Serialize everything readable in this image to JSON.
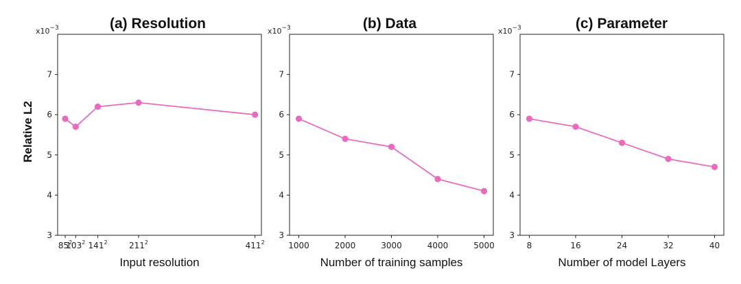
{
  "figure": {
    "ylabel": "Relative L2",
    "y_multiplier": "x10",
    "y_multiplier_exp": "−3"
  },
  "chart_data": [
    {
      "type": "line",
      "title": "(a) Resolution",
      "xlabel": "Input resolution",
      "ylabel": "Relative L2",
      "x": [
        85,
        103,
        141,
        211,
        411
      ],
      "x_tick_labels": [
        {
          "base": "85",
          "sup": "2"
        },
        {
          "base": "103",
          "sup": "2"
        },
        {
          "base": "141",
          "sup": "2"
        },
        {
          "base": "211",
          "sup": "2"
        },
        {
          "base": "411",
          "sup": "2"
        }
      ],
      "values": [
        5.9,
        5.7,
        6.2,
        6.3,
        6.0
      ],
      "xlim": [
        72,
        422
      ],
      "ylim": [
        3,
        8
      ],
      "y_ticks": [
        3,
        4,
        5,
        6,
        7
      ],
      "y_scale_label": "x10^-3",
      "color": "#e86bbd"
    },
    {
      "type": "line",
      "title": "(b) Data",
      "xlabel": "Number of training samples",
      "ylabel": "",
      "x": [
        1000,
        2000,
        3000,
        4000,
        5000
      ],
      "x_tick_labels": [
        {
          "base": "1000",
          "sup": ""
        },
        {
          "base": "2000",
          "sup": ""
        },
        {
          "base": "3000",
          "sup": ""
        },
        {
          "base": "4000",
          "sup": ""
        },
        {
          "base": "5000",
          "sup": ""
        }
      ],
      "values": [
        5.9,
        5.4,
        5.2,
        4.4,
        4.1
      ],
      "xlim": [
        800,
        5200
      ],
      "ylim": [
        3,
        8
      ],
      "y_ticks": [
        3,
        4,
        5,
        6,
        7
      ],
      "y_scale_label": "x10^-3",
      "color": "#e86bbd"
    },
    {
      "type": "line",
      "title": "(c) Parameter",
      "xlabel": "Number of model Layers",
      "ylabel": "",
      "x": [
        8,
        16,
        24,
        32,
        40
      ],
      "x_tick_labels": [
        {
          "base": "8",
          "sup": ""
        },
        {
          "base": "16",
          "sup": ""
        },
        {
          "base": "24",
          "sup": ""
        },
        {
          "base": "32",
          "sup": ""
        },
        {
          "base": "40",
          "sup": ""
        }
      ],
      "values": [
        5.9,
        5.7,
        5.3,
        4.9,
        4.7
      ],
      "xlim": [
        6.4,
        41.6
      ],
      "ylim": [
        3,
        8
      ],
      "y_ticks": [
        3,
        4,
        5,
        6,
        7
      ],
      "y_scale_label": "x10^-3",
      "color": "#e86bbd"
    }
  ]
}
